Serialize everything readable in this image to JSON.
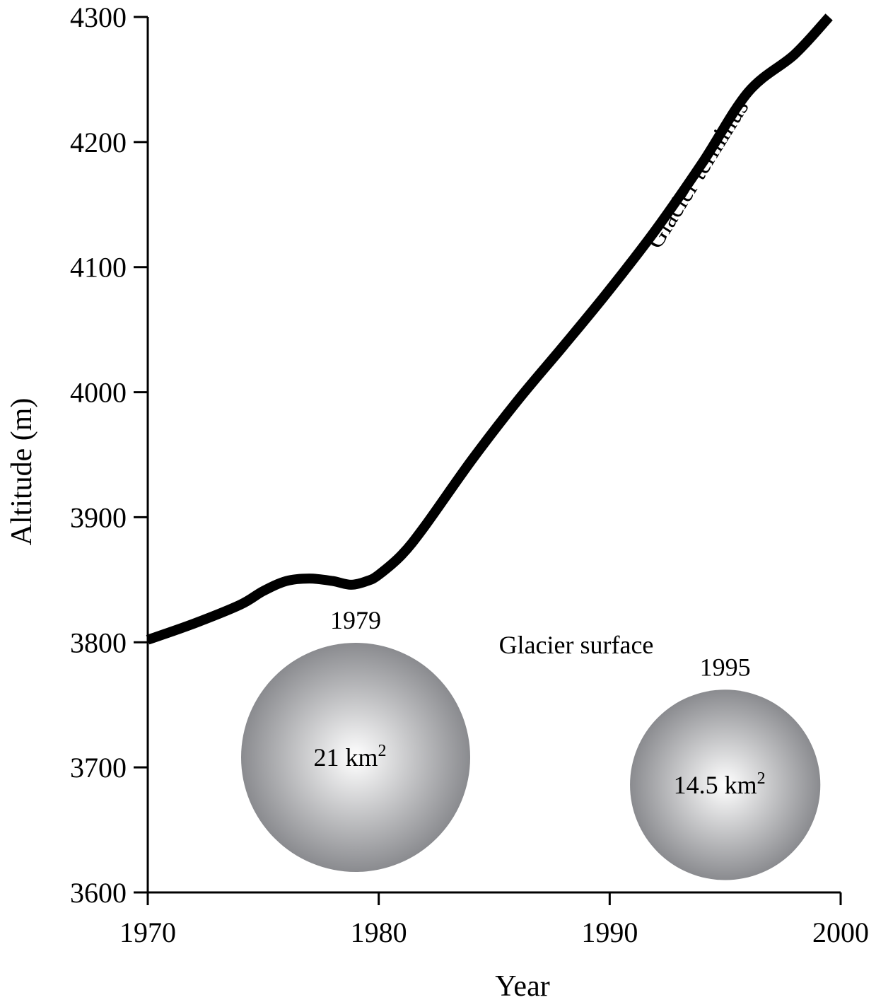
{
  "chart_data": {
    "type": "line",
    "xlabel": "Year",
    "ylabel": "Altitude (m)",
    "xlim": [
      1970,
      2000
    ],
    "ylim": [
      3600,
      4300
    ],
    "xticks": [
      "1970",
      "1980",
      "1990",
      "2000"
    ],
    "yticks": [
      "3600",
      "3700",
      "3800",
      "3900",
      "4000",
      "4100",
      "4200",
      "4300"
    ],
    "grid": false,
    "series": [
      {
        "name": "Glacier terminus",
        "x": [
          1970,
          1972,
          1974,
          1975,
          1976,
          1977,
          1978,
          1978.8,
          1979.5,
          1980,
          1981,
          1982,
          1984,
          1986,
          1988,
          1990,
          1992,
          1994,
          1996,
          1998,
          1999.5
        ],
        "y": [
          3802,
          3815,
          3830,
          3841,
          3849,
          3851,
          3849,
          3846,
          3849,
          3854,
          3870,
          3893,
          3945,
          3993,
          4037,
          4082,
          4130,
          4183,
          4240,
          4270,
          4300
        ]
      }
    ],
    "bubbles": [
      {
        "year_label": "1979",
        "area_label": "21 km",
        "area": 21,
        "x": 1979,
        "y": 3708
      },
      {
        "year_label": "1995",
        "area_label": "14.5 km",
        "area": 14.5,
        "x": 1995,
        "y": 3686
      }
    ],
    "unit_superscript": "2",
    "annotations": {
      "line_label": "Glacier terminus",
      "surface_label": "Glacier surface"
    }
  }
}
